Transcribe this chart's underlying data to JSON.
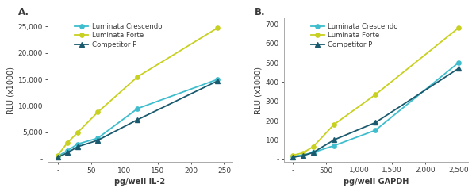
{
  "panel_A": {
    "label": "A.",
    "xlabel": "pg/well IL-2",
    "ylabel": "RLU (x1000)",
    "xlim": [
      -15,
      262
    ],
    "ylim": [
      -600,
      26500
    ],
    "xticks": [
      0,
      50,
      100,
      150,
      200,
      250
    ],
    "yticks": [
      0,
      5000,
      10000,
      15000,
      20000,
      25000
    ],
    "series": [
      {
        "key": "crescendo",
        "x": [
          0,
          15,
          30,
          60,
          120,
          240
        ],
        "y": [
          500,
          1600,
          2800,
          3900,
          9500,
          15000
        ],
        "color": "#3dbdcd",
        "marker": "o",
        "label": "Luminata Crescendo"
      },
      {
        "key": "forte",
        "x": [
          0,
          15,
          30,
          60,
          120,
          240
        ],
        "y": [
          700,
          3100,
          5000,
          8800,
          15500,
          24700
        ],
        "color": "#c8d020",
        "marker": "o",
        "label": "Luminata Forte"
      },
      {
        "key": "competitor",
        "x": [
          0,
          15,
          30,
          60,
          120,
          240
        ],
        "y": [
          300,
          1200,
          2300,
          3500,
          7400,
          14700
        ],
        "color": "#1a5a6e",
        "marker": "^",
        "label": "Competitor P"
      }
    ]
  },
  "panel_B": {
    "label": "B.",
    "xlabel": "pg/well GAPDH",
    "ylabel": "RLU (x1000)",
    "xlim": [
      -130,
      2650
    ],
    "ylim": [
      -15,
      730
    ],
    "xticks": [
      0,
      500,
      1000,
      1500,
      2000,
      2500
    ],
    "yticks": [
      0,
      100,
      200,
      300,
      400,
      500,
      600,
      700
    ],
    "series": [
      {
        "key": "crescendo",
        "x": [
          0,
          156,
          312,
          625,
          1250,
          2500
        ],
        "y": [
          15,
          22,
          35,
          70,
          150,
          500
        ],
        "color": "#3dbdcd",
        "marker": "o",
        "label": "Luminata Crescendo"
      },
      {
        "key": "forte",
        "x": [
          0,
          156,
          312,
          625,
          1250,
          2500
        ],
        "y": [
          20,
          33,
          65,
          180,
          335,
          680
        ],
        "color": "#c8d020",
        "marker": "o",
        "label": "Luminata Forte"
      },
      {
        "key": "competitor",
        "x": [
          0,
          156,
          312,
          625,
          1250,
          2500
        ],
        "y": [
          10,
          18,
          35,
          100,
          190,
          470
        ],
        "color": "#1a5a6e",
        "marker": "^",
        "label": "Competitor P"
      }
    ]
  },
  "background_color": "#ffffff",
  "font_color": "#3a3a3a",
  "label_fontsize": 7,
  "tick_fontsize": 6.5,
  "legend_fontsize": 6.2,
  "linewidth": 1.3,
  "markersize": 3.8
}
